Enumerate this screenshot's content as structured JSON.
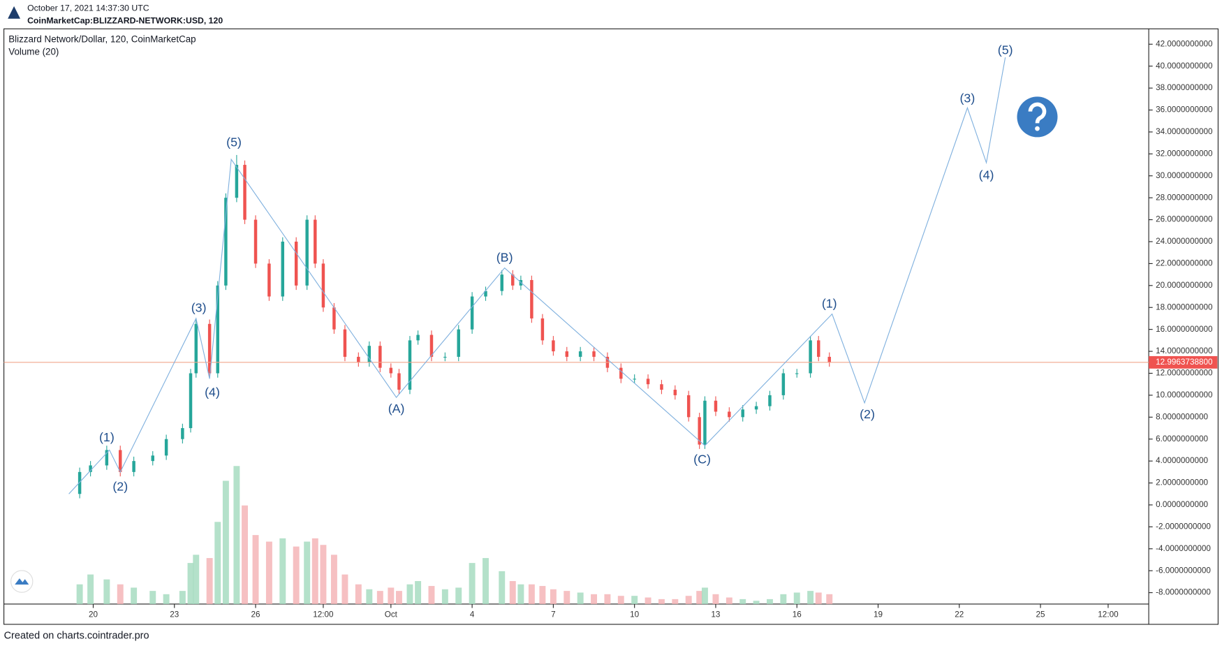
{
  "header": {
    "timestamp": "October 17, 2021 14:37:30 UTC",
    "symbol": "CoinMarketCap:BLIZZARD-NETWORK:USD, 120"
  },
  "footer": "Created on charts.cointrader.pro",
  "chart_data": {
    "type": "candlestick",
    "title": "Blizzard Network/Dollar, 120, CoinMarketCap",
    "subtitle": "Volume (20)",
    "up_color": "#26a69a",
    "down_color": "#ef5350",
    "up_volume_color": "#a7dcc1",
    "down_volume_color": "#f5b5b7",
    "wave_color": "#7fb0de",
    "grid": false,
    "xlim": [
      16.7,
      59
    ],
    "xticks": [
      20,
      23,
      26,
      {
        "value": 28.5,
        "label": "12:00"
      },
      {
        "value": 31,
        "label": "Oct"
      },
      {
        "value": 34,
        "label": "4"
      },
      {
        "value": 37,
        "label": "7"
      },
      {
        "value": 40,
        "label": "10"
      },
      {
        "value": 43,
        "label": "13"
      },
      {
        "value": 46,
        "label": "16"
      },
      {
        "value": 49,
        "label": "19"
      },
      {
        "value": 52,
        "label": "22"
      },
      {
        "value": 55,
        "label": "25"
      },
      {
        "value": 57.5,
        "label": "12:00"
      }
    ],
    "ylim": [
      -9.04,
      43.4
    ],
    "yticks": [
      {
        "value": -8,
        "label": "-8.0000000000"
      },
      {
        "value": -6,
        "label": "-6.0000000000"
      },
      {
        "value": -4,
        "label": "-4.0000000000"
      },
      {
        "value": -2,
        "label": "-2.0000000000"
      },
      {
        "value": 0,
        "label": "0.0000000000"
      },
      {
        "value": 2,
        "label": "2.0000000000"
      },
      {
        "value": 4,
        "label": "4.0000000000"
      },
      {
        "value": 6,
        "label": "6.0000000000"
      },
      {
        "value": 8,
        "label": "8.0000000000"
      },
      {
        "value": 10,
        "label": "10.0000000000"
      },
      {
        "value": 12,
        "label": "12.0000000000"
      },
      {
        "value": 14,
        "label": "14.0000000000"
      },
      {
        "value": 16,
        "label": "16.0000000000"
      },
      {
        "value": 18,
        "label": "18.0000000000"
      },
      {
        "value": 20,
        "label": "20.0000000000"
      },
      {
        "value": 22,
        "label": "22.0000000000"
      },
      {
        "value": 24,
        "label": "24.0000000000"
      },
      {
        "value": 26,
        "label": "26.0000000000"
      },
      {
        "value": 28,
        "label": "28.0000000000"
      },
      {
        "value": 30,
        "label": "30.0000000000"
      },
      {
        "value": 32,
        "label": "32.0000000000"
      },
      {
        "value": 34,
        "label": "34.0000000000"
      },
      {
        "value": 36,
        "label": "36.0000000000"
      },
      {
        "value": 38,
        "label": "38.0000000000"
      },
      {
        "value": 40,
        "label": "40.0000000000"
      },
      {
        "value": 42,
        "label": "42.0000000000"
      }
    ],
    "y2lim": [
      0,
      350
    ],
    "last_price": {
      "value": 12.99637388,
      "label": "12.9963738800"
    },
    "series": {
      "x": [
        19.5,
        19.9,
        20.5,
        21.0,
        21.5,
        22.2,
        22.7,
        23.3,
        23.6,
        23.8,
        24.3,
        24.6,
        24.9,
        25.3,
        25.6,
        26.0,
        26.5,
        27.0,
        27.5,
        27.9,
        28.2,
        28.5,
        28.9,
        29.3,
        29.8,
        30.2,
        30.6,
        31.0,
        31.3,
        31.7,
        32.0,
        32.5,
        33.0,
        33.5,
        34.0,
        34.5,
        35.1,
        35.5,
        35.8,
        36.2,
        36.6,
        37.0,
        37.5,
        38.0,
        38.5,
        39.0,
        39.5,
        40.0,
        40.5,
        41.0,
        41.5,
        42.0,
        42.4,
        42.6,
        43.0,
        43.5,
        44.0,
        44.5,
        45.0,
        45.5,
        46.0,
        46.5,
        46.8,
        47.2
      ],
      "open": [
        1.0,
        3.0,
        3.6,
        5.0,
        3.0,
        4.0,
        4.5,
        6.0,
        7.0,
        12.0,
        16.5,
        12.0,
        20.0,
        28.0,
        31.0,
        26.0,
        22.0,
        19.0,
        24.0,
        20.0,
        26.0,
        22.0,
        18.0,
        16.0,
        13.5,
        13.0,
        14.5,
        12.5,
        12.0,
        10.5,
        15.0,
        15.5,
        13.5,
        13.5,
        16.0,
        19.0,
        19.5,
        21.0,
        20.0,
        20.5,
        17.0,
        15.0,
        14.0,
        13.5,
        14.0,
        13.5,
        12.5,
        11.5,
        11.5,
        11.0,
        10.5,
        10.0,
        8.0,
        5.5,
        9.5,
        8.5,
        8.0,
        8.7,
        9.0,
        10.0,
        12.0,
        12.0,
        15.0,
        13.5
      ],
      "high": [
        3.4,
        4.0,
        5.4,
        5.4,
        4.4,
        4.9,
        6.4,
        7.4,
        12.4,
        16.9,
        16.9,
        20.4,
        28.4,
        31.9,
        31.4,
        26.4,
        22.4,
        24.4,
        24.4,
        26.4,
        26.4,
        22.4,
        18.4,
        16.4,
        13.9,
        14.9,
        14.9,
        12.9,
        12.4,
        15.4,
        15.9,
        15.9,
        13.9,
        16.4,
        19.4,
        19.9,
        21.4,
        21.4,
        20.9,
        20.9,
        17.4,
        15.4,
        14.4,
        14.4,
        14.4,
        13.9,
        12.9,
        11.9,
        11.9,
        11.4,
        10.9,
        10.4,
        8.4,
        9.9,
        9.9,
        8.9,
        9.1,
        9.4,
        10.4,
        12.4,
        12.4,
        15.4,
        15.4,
        13.9
      ],
      "low": [
        0.6,
        2.6,
        3.2,
        2.6,
        2.6,
        3.6,
        4.1,
        5.6,
        6.6,
        11.6,
        11.6,
        11.6,
        19.6,
        27.6,
        25.6,
        21.6,
        18.6,
        18.6,
        19.6,
        19.6,
        21.6,
        17.6,
        15.6,
        13.1,
        12.6,
        12.6,
        12.1,
        11.6,
        10.1,
        10.1,
        14.6,
        13.1,
        13.1,
        13.1,
        15.6,
        18.6,
        19.1,
        19.6,
        19.6,
        16.6,
        14.6,
        13.6,
        13.1,
        13.1,
        13.1,
        12.1,
        11.1,
        11.1,
        10.6,
        10.1,
        9.6,
        7.6,
        5.1,
        5.1,
        8.1,
        7.6,
        7.6,
        8.3,
        8.6,
        9.6,
        11.6,
        11.6,
        13.1,
        12.6
      ],
      "close": [
        3.0,
        3.6,
        5.0,
        3.0,
        4.0,
        4.5,
        6.0,
        7.0,
        12.0,
        16.5,
        12.0,
        20.0,
        28.0,
        31.0,
        26.0,
        22.0,
        19.0,
        24.0,
        20.0,
        26.0,
        22.0,
        18.0,
        16.0,
        13.5,
        13.0,
        14.5,
        12.5,
        12.0,
        10.5,
        15.0,
        15.5,
        13.5,
        13.5,
        16.0,
        19.0,
        19.5,
        21.0,
        20.0,
        20.5,
        17.0,
        15.0,
        14.0,
        13.5,
        14.0,
        13.5,
        12.5,
        11.5,
        11.5,
        11.0,
        10.5,
        10.0,
        8.0,
        5.5,
        9.5,
        8.5,
        8.0,
        8.7,
        9.0,
        10.0,
        12.0,
        12.0,
        15.0,
        13.5,
        13.0
      ],
      "volume": [
        12,
        18,
        15,
        12,
        10,
        8,
        6,
        8,
        25,
        30,
        28,
        50,
        75,
        84,
        60,
        42,
        38,
        40,
        35,
        38,
        40,
        36,
        30,
        18,
        12,
        9,
        8,
        10,
        8,
        12,
        14,
        11,
        9,
        10,
        25,
        28,
        20,
        14,
        12,
        12,
        11,
        9,
        8,
        7,
        6,
        6,
        5,
        5,
        4,
        3,
        3,
        5,
        8,
        10,
        6,
        4,
        3,
        2,
        3,
        6,
        7,
        8,
        7,
        6
      ]
    },
    "wave_line": {
      "x": [
        19.1,
        20.6,
        21.0,
        23.8,
        24.3,
        25.1,
        31.2,
        35.2,
        42.6,
        47.3,
        48.5,
        52.3,
        53.0,
        53.7
      ],
      "y": [
        1.0,
        5.0,
        3.0,
        17.0,
        11.5,
        31.5,
        9.8,
        21.6,
        5.4,
        17.4,
        9.3,
        36.2,
        31.2,
        40.8
      ]
    },
    "annotations": [
      {
        "label": "(1)",
        "x": 20.5,
        "y": 6.1
      },
      {
        "label": "(2)",
        "x": 21.0,
        "y": 1.6
      },
      {
        "label": "(3)",
        "x": 23.9,
        "y": 17.9
      },
      {
        "label": "(4)",
        "x": 24.4,
        "y": 10.2
      },
      {
        "label": "(5)",
        "x": 25.2,
        "y": 33.0
      },
      {
        "label": "(A)",
        "x": 31.2,
        "y": 8.7
      },
      {
        "label": "(B)",
        "x": 35.2,
        "y": 22.5
      },
      {
        "label": "(C)",
        "x": 42.5,
        "y": 4.1
      },
      {
        "label": "(1)",
        "x": 47.2,
        "y": 18.3
      },
      {
        "label": "(2)",
        "x": 48.6,
        "y": 8.2
      },
      {
        "label": "(3)",
        "x": 52.3,
        "y": 37.0
      },
      {
        "label": "(4)",
        "x": 53.0,
        "y": 30.0
      },
      {
        "label": "(5)",
        "x": 53.7,
        "y": 41.4
      }
    ]
  }
}
